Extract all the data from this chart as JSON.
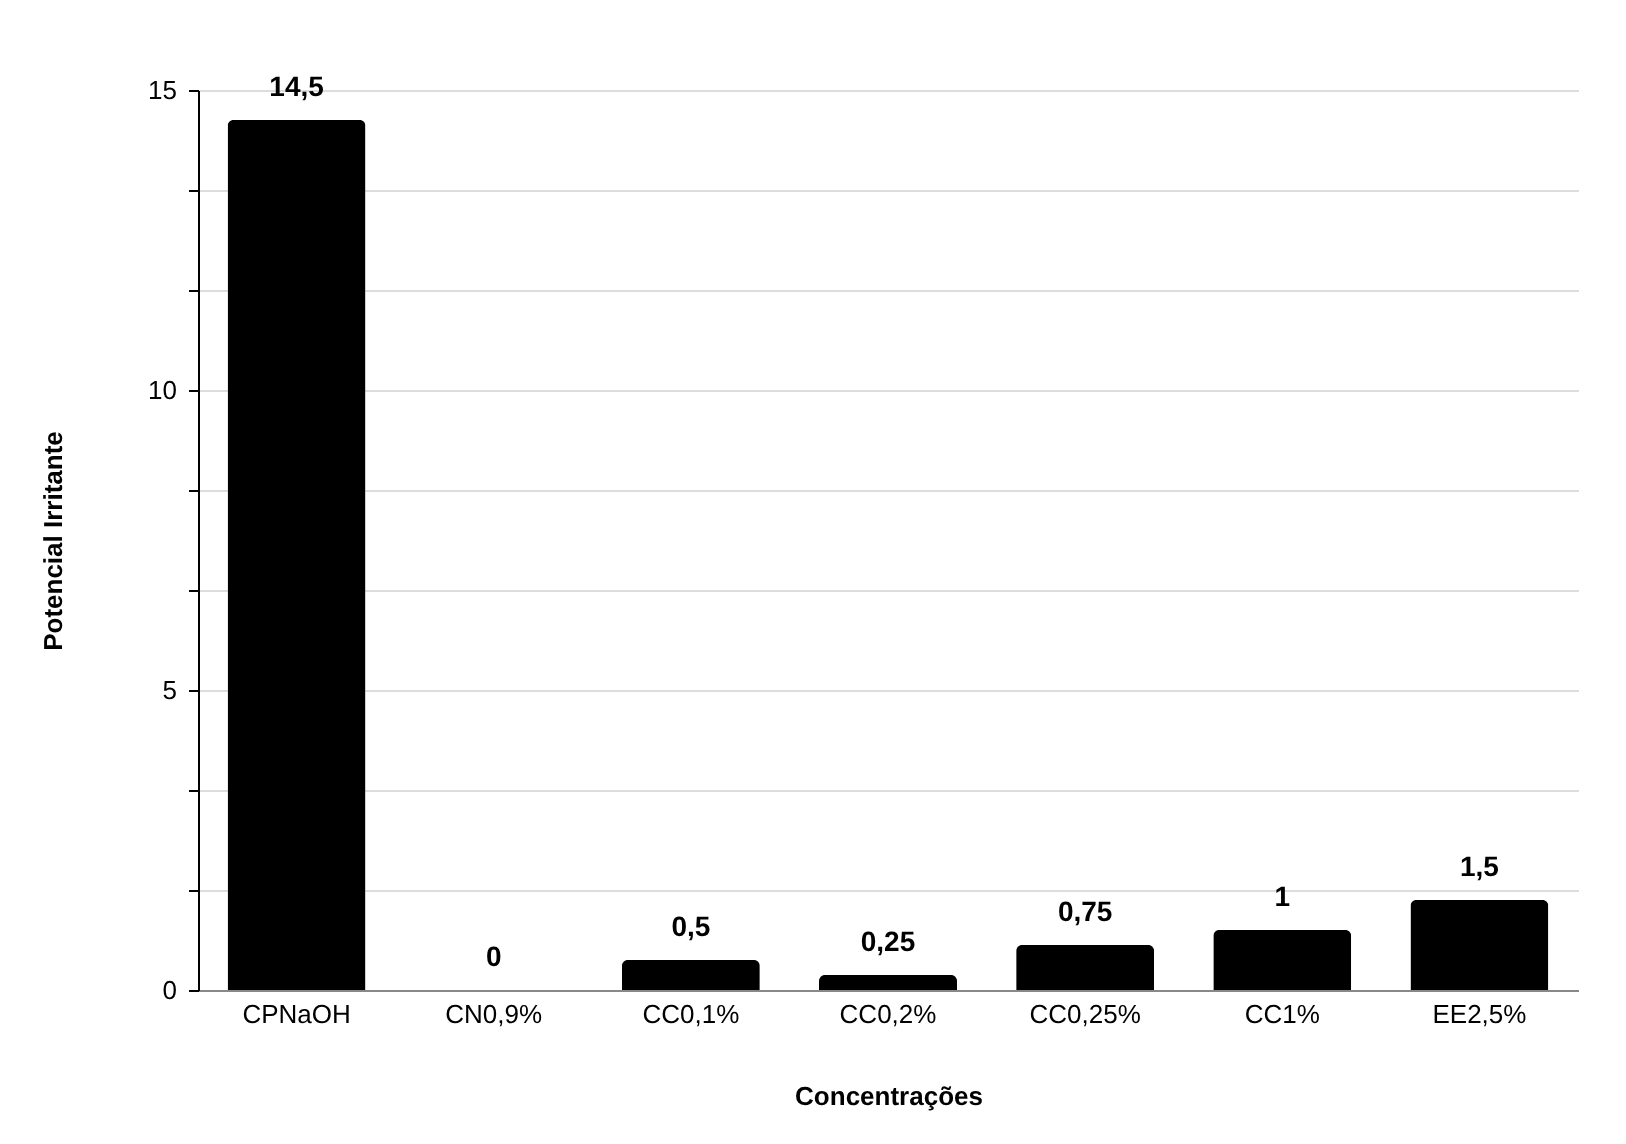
{
  "chart_data": {
    "type": "bar",
    "xlabel": "Concentrações",
    "ylabel": "Potencial Irritante",
    "categories": [
      "CPNaOH",
      "CN0,9%",
      "CC0,1%",
      "CC0,2%",
      "CC0,25%",
      "CC1%",
      "EE2,5%"
    ],
    "values": [
      14.5,
      0,
      0.5,
      0.25,
      0.75,
      1,
      1.5
    ],
    "value_labels": [
      "14,5",
      "0",
      "0,5",
      "0,25",
      "0,75",
      "1",
      "1,5"
    ],
    "color": "#000000",
    "ylim": [
      0,
      15
    ],
    "yticks": [
      0,
      {
        "value": 1.667,
        "label": null
      },
      {
        "value": 3.333,
        "label": null
      },
      5,
      {
        "value": 6.667,
        "label": null
      },
      {
        "value": 8.333,
        "label": null
      },
      10,
      {
        "value": 11.667,
        "label": null
      },
      {
        "value": 13.333,
        "label": null
      },
      15
    ],
    "grid": "y"
  }
}
